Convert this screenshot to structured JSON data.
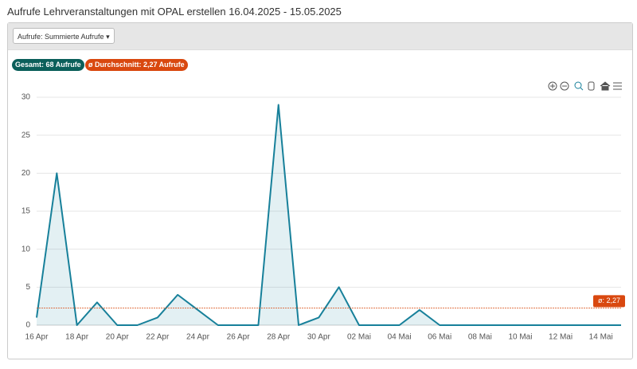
{
  "header": {
    "title": "Aufrufe Lehrveranstaltungen mit OPAL erstellen 16.04.2025 - 15.05.2025"
  },
  "toolbar": {
    "dropdown": "Aufrufe: Summierte Aufrufe"
  },
  "badges": {
    "total": "Gesamt: 68 Aufrufe",
    "average": "ø Durchschnitt: 2,27 Aufrufe"
  },
  "chart_data": {
    "type": "area",
    "categories": [
      "16 Apr",
      null,
      "18 Apr",
      null,
      "20 Apr",
      null,
      "22 Apr",
      null,
      "24 Apr",
      null,
      "26 Apr",
      null,
      "28 Apr",
      null,
      "30 Apr",
      null,
      "02 Mai",
      null,
      "04 Mai",
      null,
      "06 Mai",
      null,
      "08 Mai",
      null,
      "10 Mai",
      null,
      "12 Mai",
      null,
      "14 Mai",
      null
    ],
    "series": [
      {
        "name": "Aufrufe",
        "color": "#17809a",
        "values": [
          1,
          20,
          0,
          3,
          0,
          0,
          1,
          4,
          2,
          0,
          0,
          0,
          29,
          0,
          1,
          5,
          0,
          0,
          0,
          2,
          0,
          0,
          0,
          0,
          0,
          0,
          0,
          0,
          0,
          0
        ]
      }
    ],
    "average": {
      "value": 2.27,
      "label": "ø: 2,27",
      "color": "#d9480f"
    },
    "ylim": [
      0,
      30
    ],
    "yticks": [
      0,
      5,
      10,
      15,
      20,
      25,
      30
    ],
    "grid": true
  }
}
